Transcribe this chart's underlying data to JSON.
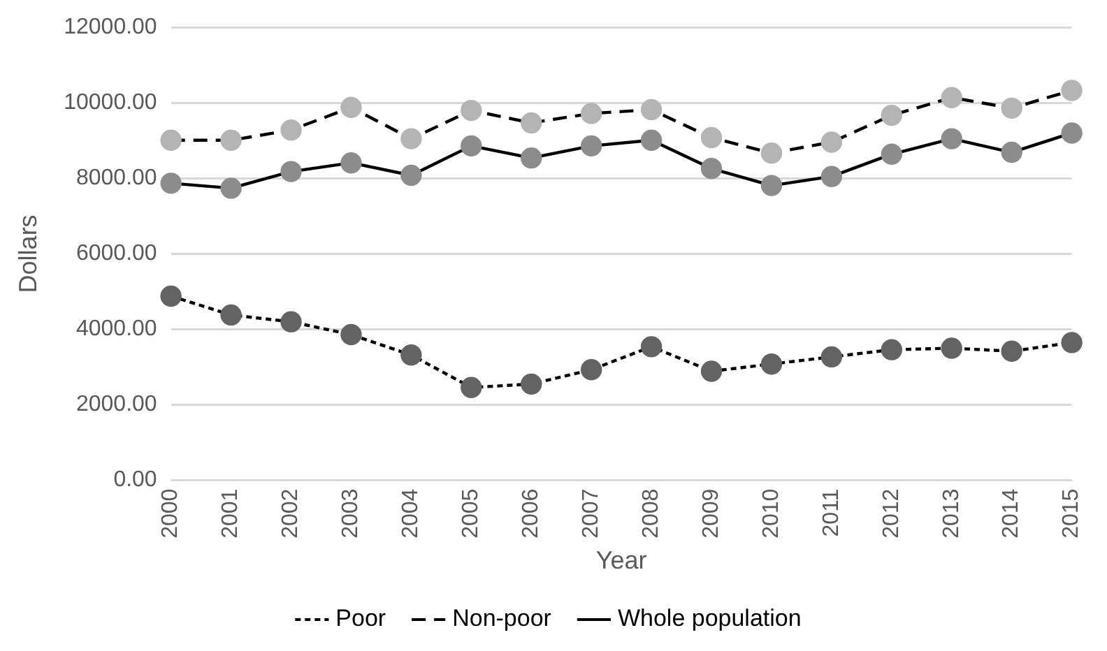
{
  "chart_data": {
    "type": "line",
    "xlabel": "Year",
    "ylabel": "Dollars",
    "categories": [
      "2000",
      "2001",
      "2002",
      "2003",
      "2004",
      "2005",
      "2006",
      "2007",
      "2008",
      "2009",
      "2010",
      "2011",
      "2012",
      "2013",
      "2014",
      "2015"
    ],
    "series": [
      {
        "name": "Poor",
        "color": "#636363",
        "line_style": "dotted",
        "values": [
          4880,
          4380,
          4200,
          3860,
          3320,
          2460,
          2550,
          2930,
          3540,
          2890,
          3080,
          3270,
          3460,
          3500,
          3420,
          3650
        ]
      },
      {
        "name": "Non-poor",
        "color": "#b4b4b4",
        "line_style": "dashed",
        "values": [
          9010,
          9010,
          9280,
          9880,
          9050,
          9800,
          9470,
          9720,
          9820,
          9080,
          8670,
          8960,
          9670,
          10140,
          9860,
          10330
        ]
      },
      {
        "name": "Whole population",
        "color": "#8c8c8c",
        "line_style": "solid",
        "values": [
          7870,
          7740,
          8180,
          8410,
          8080,
          8860,
          8540,
          8860,
          9010,
          8260,
          7810,
          8050,
          8640,
          9050,
          8690,
          9200
        ]
      }
    ],
    "ylim": [
      0,
      12000
    ],
    "yticks": [
      {
        "value": 0,
        "label": "0.00"
      },
      {
        "value": 2000,
        "label": "2000.00"
      },
      {
        "value": 4000,
        "label": "4000.00"
      },
      {
        "value": 6000,
        "label": "6000.00"
      },
      {
        "value": 8000,
        "label": "8000.00"
      },
      {
        "value": 10000,
        "label": "10000.00"
      },
      {
        "value": 12000,
        "label": "12000.00"
      }
    ],
    "grid": "y",
    "legend": "bottom",
    "marker": "circle"
  }
}
